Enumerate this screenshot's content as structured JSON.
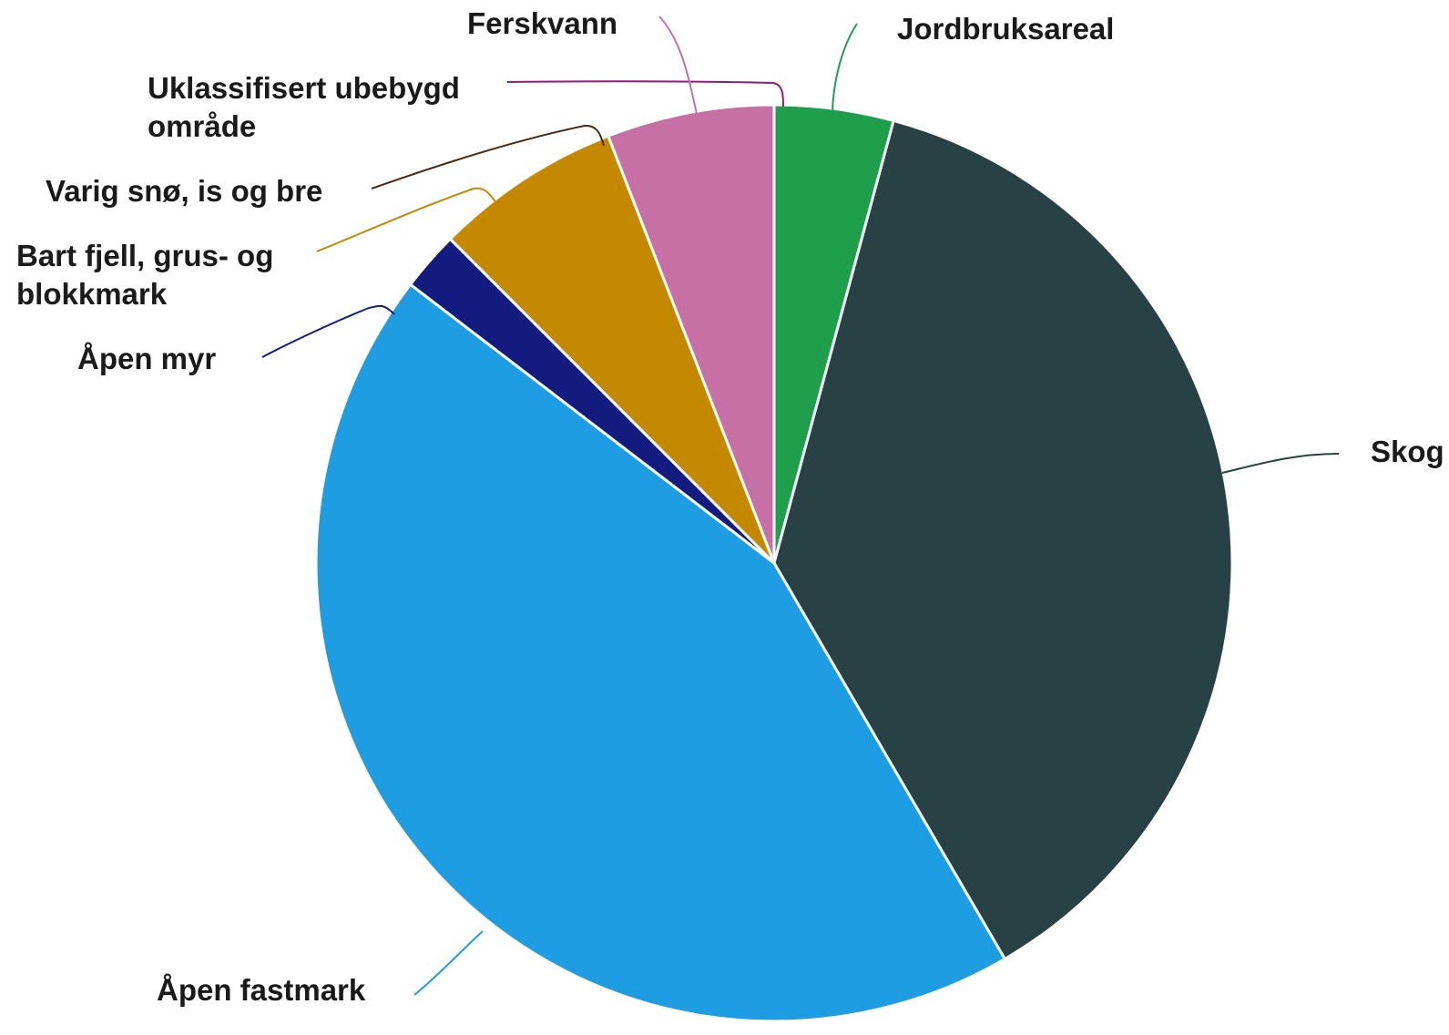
{
  "chart_data": {
    "type": "pie",
    "start_angle_deg": 0,
    "direction": "clockwise",
    "legend": "none",
    "slices": [
      {
        "label": "Jordbruksareal",
        "value": 4.2,
        "color": "#1f9e4c",
        "name": "jordbruksareal"
      },
      {
        "label": "Skog",
        "value": 37.4,
        "color": "#284145",
        "name": "skog"
      },
      {
        "label": "Åpen fastmark",
        "value": 43.8,
        "color": "#1e9de2",
        "name": "apen-fastmark"
      },
      {
        "label": "Åpen myr",
        "value": 2.1,
        "color": "#141b7e",
        "name": "apen-myr"
      },
      {
        "label": "Bart fjell, grus- og blokkmark",
        "label_lines": [
          "Bart fjell, grus- og",
          "blokkmark"
        ],
        "value": 6.6,
        "color": "#c58900",
        "name": "bart-fjell"
      },
      {
        "label": "Varig snø, is og bre",
        "value": 0.0,
        "color": "#4a2a12",
        "name": "varig-sno"
      },
      {
        "label": "Uklassifisert ubebygd område",
        "label_lines": [
          "Uklassifisert ubebygd",
          "område"
        ],
        "value": 0.0,
        "color": "#8c1e7a",
        "name": "uklassifisert"
      },
      {
        "label": "Ferskvann",
        "value": 5.9,
        "color": "#c670a5",
        "name": "ferskvann"
      }
    ]
  }
}
